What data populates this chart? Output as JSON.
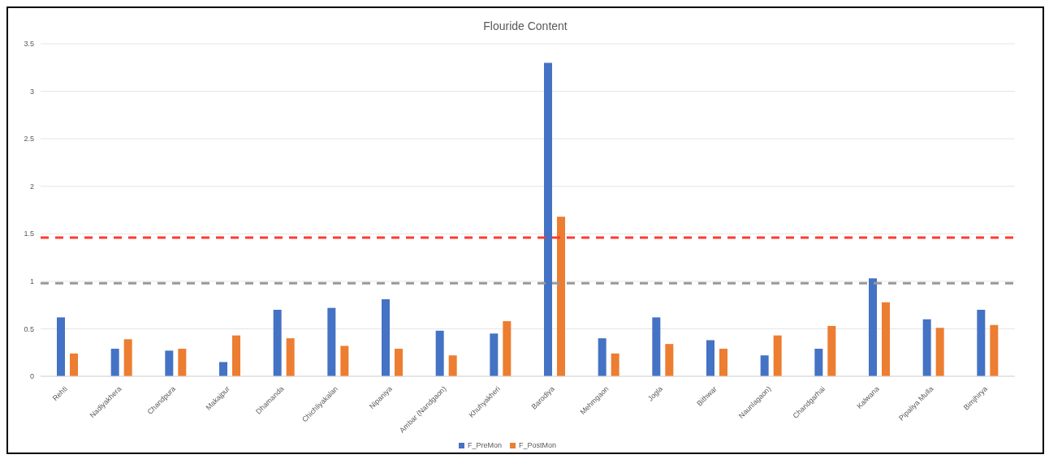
{
  "chart_data": {
    "type": "bar",
    "title": "Flouride Content",
    "categories": [
      "Rehti",
      "Nadiyakhera",
      "Chandpura",
      "Makajpur",
      "Dhamanda",
      "Chichliyakalan",
      "Nipaniya",
      "Ambar (Nandgaon)",
      "Khuhyakheri",
      "Barodiya",
      "Mehmgaon",
      "Jogla",
      "Bithwar",
      "Naunlagaon)",
      "Chandgarhai",
      "Kalwana",
      "Pipaliya Mulla",
      "Bimjhirya"
    ],
    "series": [
      {
        "name": "F_PreMon",
        "color": "#4472c4",
        "values": [
          0.62,
          0.29,
          0.27,
          0.15,
          0.7,
          0.72,
          0.81,
          0.48,
          0.45,
          3.3,
          0.4,
          0.62,
          0.38,
          0.22,
          0.29,
          1.03,
          0.6,
          0.7
        ]
      },
      {
        "name": "F_PostMon",
        "color": "#ed7d31",
        "values": [
          0.24,
          0.39,
          0.29,
          0.43,
          0.4,
          0.32,
          0.29,
          0.22,
          0.58,
          1.68,
          0.24,
          0.34,
          0.29,
          0.43,
          0.53,
          0.78,
          0.51,
          0.54
        ]
      }
    ],
    "ylim": [
      0,
      3.5
    ],
    "yticks": [
      0,
      0.5,
      1,
      1.5,
      2,
      2.5,
      3,
      3.5
    ],
    "grid": "y",
    "legend": "bottom",
    "ref_lines": [
      {
        "axis": "y",
        "value": 1.46,
        "color": "#ff3b30",
        "line_style": "dashed"
      },
      {
        "axis": "y",
        "value": 0.98,
        "color": "#999999",
        "line_style": "dashed"
      }
    ]
  }
}
